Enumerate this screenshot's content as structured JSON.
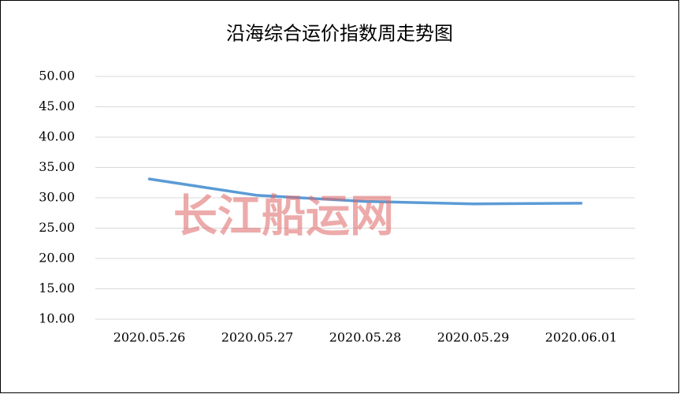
{
  "chart_data": {
    "type": "line",
    "title": "沿海综合运价指数周走势图",
    "watermark": "长江船运网",
    "categories": [
      "2020.05.26",
      "2020.05.27",
      "2020.05.28",
      "2020.05.29",
      "2020.06.01"
    ],
    "values": [
      33.1,
      30.4,
      29.4,
      29.0,
      29.1
    ],
    "color": "#5b9bd5",
    "ylim": [
      10,
      50
    ],
    "yticks": [
      {
        "value": 10,
        "label": "10.00"
      },
      {
        "value": 15,
        "label": "15.00"
      },
      {
        "value": 20,
        "label": "20.00"
      },
      {
        "value": 25,
        "label": "25.00"
      },
      {
        "value": 30,
        "label": "30.00"
      },
      {
        "value": 35,
        "label": "35.00"
      },
      {
        "value": 40,
        "label": "40.00"
      },
      {
        "value": 45,
        "label": "45.00"
      },
      {
        "value": 50,
        "label": "50.00"
      }
    ],
    "grid": true
  }
}
